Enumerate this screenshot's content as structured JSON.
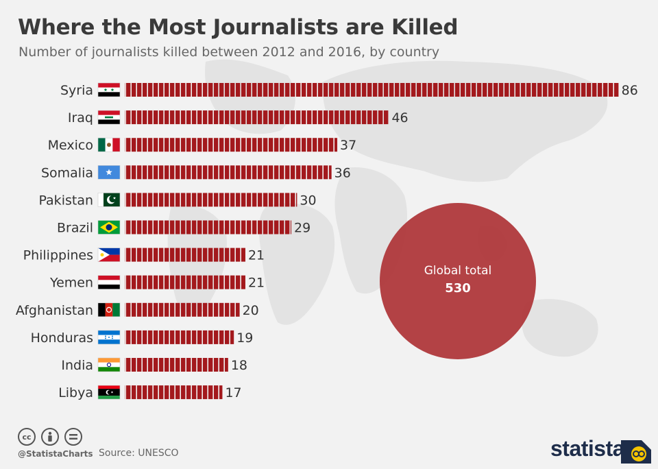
{
  "header": {
    "title": "Where the Most Journalists are Killed",
    "subtitle": "Number of journalists killed between 2012 and 2016, by country"
  },
  "chart_data": {
    "type": "bar",
    "orientation": "horizontal",
    "title": "Where the Most Journalists are Killed",
    "subtitle": "Number of journalists killed between 2012 and 2016, by country",
    "categories": [
      "Syria",
      "Iraq",
      "Mexico",
      "Somalia",
      "Pakistan",
      "Brazil",
      "Philippines",
      "Yemen",
      "Afghanistan",
      "Honduras",
      "India",
      "Libya"
    ],
    "values": [
      86,
      46,
      37,
      36,
      30,
      29,
      21,
      21,
      20,
      19,
      18,
      17
    ],
    "xlabel": "",
    "ylabel": "",
    "grid": false,
    "legend": "none",
    "bar_color": "#a3191d",
    "annotation": {
      "label": "Global total",
      "value": "530"
    }
  },
  "flags": [
    {
      "country": "Syria",
      "icon": "syria-flag-icon"
    },
    {
      "country": "Iraq",
      "icon": "iraq-flag-icon"
    },
    {
      "country": "Mexico",
      "icon": "mexico-flag-icon"
    },
    {
      "country": "Somalia",
      "icon": "somalia-flag-icon"
    },
    {
      "country": "Pakistan",
      "icon": "pakistan-flag-icon"
    },
    {
      "country": "Brazil",
      "icon": "brazil-flag-icon"
    },
    {
      "country": "Philippines",
      "icon": "philippines-flag-icon"
    },
    {
      "country": "Yemen",
      "icon": "yemen-flag-icon"
    },
    {
      "country": "Afghanistan",
      "icon": "afghanistan-flag-icon"
    },
    {
      "country": "Honduras",
      "icon": "honduras-flag-icon"
    },
    {
      "country": "India",
      "icon": "india-flag-icon"
    },
    {
      "country": "Libya",
      "icon": "libya-flag-icon"
    }
  ],
  "footer": {
    "license_icons": [
      "cc-icon",
      "by-icon",
      "nd-icon"
    ],
    "cc_text": "cc",
    "handle": "@StatistaCharts",
    "source": "Source: UNESCO",
    "brand": "statista"
  },
  "colors": {
    "background": "#f2f2f2",
    "bar": "#a3191d",
    "circle": "#b03a3d",
    "title": "#3a3a3a",
    "brand": "#1e2d4a",
    "logo_accent": "#f5c400"
  }
}
